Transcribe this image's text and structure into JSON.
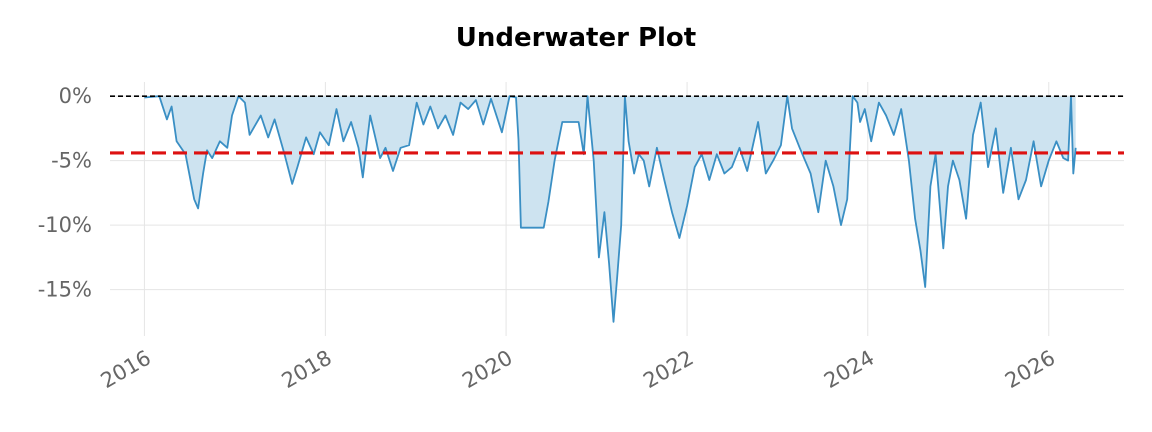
{
  "chart_data": {
    "type": "area",
    "title": "Underwater Plot",
    "xlabel": "",
    "ylabel": "",
    "grid": true,
    "legend": "none",
    "x_ticks": [
      "2016",
      "2018",
      "2020",
      "2022",
      "2024",
      "2026"
    ],
    "y_ticks": [
      "0%",
      "-5%",
      "-10%",
      "-15%"
    ],
    "y_tick_values": [
      0,
      -5,
      -10,
      -15
    ],
    "xlim": [
      "2015-08-15",
      "2026-11-01"
    ],
    "ylim": [
      -18.6,
      1.1
    ],
    "zero_line": 0,
    "average_drawdown": -4.4,
    "colors": {
      "line": "#3a8fc4",
      "fill": "#cde3f0",
      "average": "#dd1111",
      "zero": "#000000",
      "grid": "#e5e5e5",
      "tick": "#666666"
    },
    "series": [
      {
        "x": [
          "2016-01-01",
          "2016-03-01",
          "2016-04-01",
          "2016-04-20",
          "2016-05-10",
          "2016-06-15",
          "2016-07-20",
          "2016-08-05",
          "2016-08-25",
          "2016-09-10",
          "2016-10-01",
          "2016-11-01",
          "2016-12-01",
          "2016-12-20",
          "2017-01-15",
          "2017-02-10",
          "2017-03-01",
          "2017-04-15",
          "2017-05-15",
          "2017-06-10",
          "2017-07-20",
          "2017-08-20",
          "2017-09-10",
          "2017-10-15",
          "2017-11-15",
          "2017-12-10",
          "2018-01-15",
          "2018-02-15",
          "2018-03-15",
          "2018-04-15",
          "2018-05-15",
          "2018-06-01",
          "2018-07-01",
          "2018-08-10",
          "2018-09-01",
          "2018-10-01",
          "2018-11-01",
          "2018-12-05",
          "2019-01-05",
          "2019-02-01",
          "2019-03-01",
          "2019-04-01",
          "2019-05-01",
          "2019-06-01",
          "2019-07-01",
          "2019-08-01",
          "2019-09-01",
          "2019-10-01",
          "2019-11-01",
          "2019-12-15",
          "2020-01-15",
          "2020-02-10",
          "2020-02-20",
          "2020-03-01",
          "2020-04-15",
          "2020-05-10",
          "2020-06-01",
          "2020-06-20",
          "2020-07-15",
          "2020-08-15",
          "2020-09-15",
          "2020-10-20",
          "2020-11-10",
          "2020-11-25",
          "2020-12-20",
          "2021-01-10",
          "2021-02-01",
          "2021-02-20",
          "2021-03-10",
          "2021-03-25",
          "2021-04-10",
          "2021-04-25",
          "2021-05-10",
          "2021-06-01",
          "2021-06-20",
          "2021-07-10",
          "2021-08-01",
          "2021-09-01",
          "2021-10-01",
          "2021-11-01",
          "2021-12-01",
          "2022-01-01",
          "2022-02-01",
          "2022-03-01",
          "2022-04-01",
          "2022-05-01",
          "2022-06-01",
          "2022-07-01",
          "2022-08-01",
          "2022-09-01",
          "2022-10-15",
          "2022-11-15",
          "2022-12-15",
          "2023-01-15",
          "2023-02-10",
          "2023-03-01",
          "2023-04-01",
          "2023-05-15",
          "2023-06-15",
          "2023-07-15",
          "2023-08-15",
          "2023-09-15",
          "2023-10-10",
          "2023-11-01",
          "2023-11-20",
          "2023-12-01",
          "2023-12-20",
          "2024-01-15",
          "2024-02-15",
          "2024-03-15",
          "2024-04-15",
          "2024-05-15",
          "2024-06-15",
          "2024-07-10",
          "2024-08-01",
          "2024-08-20",
          "2024-09-10",
          "2024-10-01",
          "2024-11-01",
          "2024-11-20",
          "2024-12-10",
          "2025-01-05",
          "2025-02-01",
          "2025-03-01",
          "2025-04-01",
          "2025-05-01",
          "2025-06-01",
          "2025-07-01",
          "2025-08-01",
          "2025-09-01",
          "2025-10-01",
          "2025-11-01",
          "2025-12-01",
          "2026-01-01",
          "2026-02-01",
          "2026-03-01",
          "2026-03-20",
          "2026-04-01",
          "2026-04-10",
          "2026-04-20"
        ],
        "values": [
          -0.1,
          0,
          -1.8,
          -0.8,
          -3.5,
          -4.5,
          -8.0,
          -8.7,
          -6.0,
          -4.2,
          -4.8,
          -3.5,
          -4.0,
          -1.5,
          0,
          -0.5,
          -3.0,
          -1.5,
          -3.2,
          -1.8,
          -4.5,
          -6.8,
          -5.5,
          -3.2,
          -4.5,
          -2.8,
          -3.8,
          -1.0,
          -3.5,
          -2.0,
          -4.0,
          -6.3,
          -1.5,
          -4.8,
          -4.0,
          -5.8,
          -4.0,
          -3.8,
          -0.5,
          -2.2,
          -0.8,
          -2.5,
          -1.5,
          -3.0,
          -0.5,
          -1.0,
          -0.3,
          -2.2,
          -0.2,
          -2.8,
          0,
          -0.1,
          -3.4,
          -10.2,
          -10.2,
          -10.2,
          -10.2,
          -8.2,
          -5.0,
          -2.0,
          -2.0,
          -2.0,
          -4.5,
          0,
          -5.0,
          -12.5,
          -9.0,
          -13.0,
          -17.5,
          -14.0,
          -10.0,
          0,
          -3.5,
          -6.0,
          -4.5,
          -5.0,
          -7.0,
          -4.0,
          -6.5,
          -9.0,
          -11.0,
          -8.5,
          -5.5,
          -4.5,
          -6.5,
          -4.5,
          -6.0,
          -5.5,
          -4.0,
          -5.8,
          -2.0,
          -6.0,
          -5.0,
          -3.8,
          0,
          -2.5,
          -4.0,
          -6.0,
          -9.0,
          -5.0,
          -7.0,
          -10.0,
          -8.0,
          0,
          -0.5,
          -2.0,
          -1.0,
          -3.5,
          -0.5,
          -1.5,
          -3.0,
          -1.0,
          -5.0,
          -9.5,
          -12.0,
          -14.8,
          -7.0,
          -4.5,
          -11.8,
          -7.0,
          -5.0,
          -6.5,
          -9.5,
          -3.0,
          -0.5,
          -5.5,
          -2.5,
          -7.5,
          -4.0,
          -8.0,
          -6.5,
          -3.5,
          -7.0,
          -5.0,
          -3.5,
          -4.8,
          -5.0,
          0,
          -6.0,
          -4.0
        ]
      }
    ]
  }
}
